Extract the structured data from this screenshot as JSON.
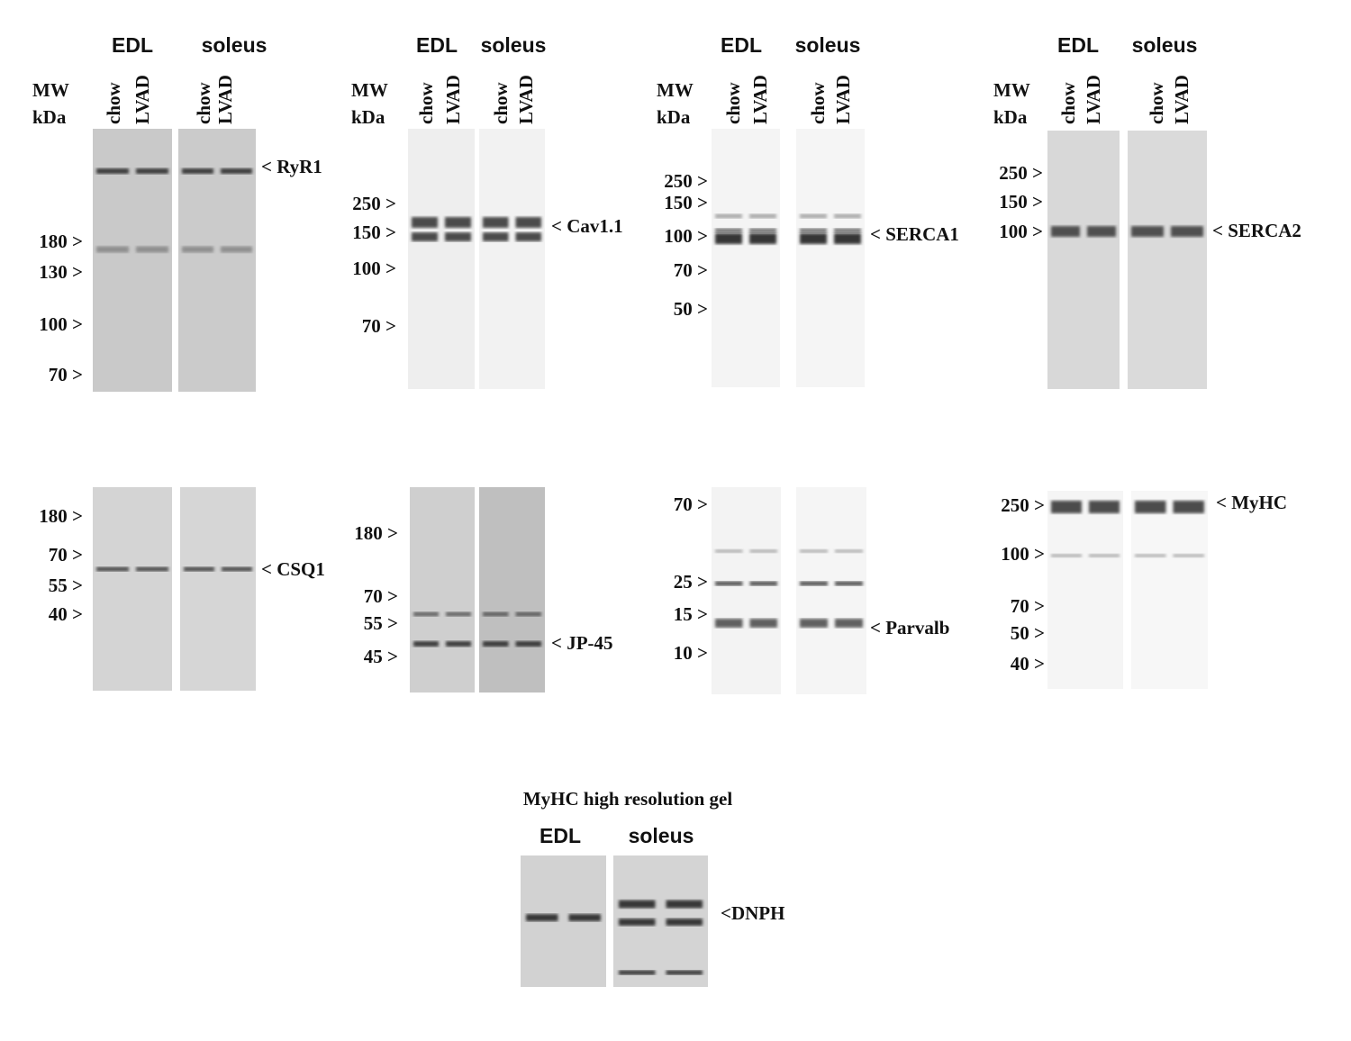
{
  "panels": [
    {
      "groups": [
        "EDL",
        "soleus"
      ],
      "lanes": [
        "chow",
        "LVAD",
        "chow",
        "LVAD"
      ],
      "mw": [
        "MW",
        "kDa"
      ],
      "markers": [
        "180 >",
        "130 >",
        "100 >",
        "70 >"
      ],
      "protein": "< RyR1"
    },
    {
      "groups": [
        "EDL",
        "soleus"
      ],
      "lanes": [
        "chow",
        "LVAD",
        "chow",
        "LVAD"
      ],
      "mw": [
        "MW",
        "kDa"
      ],
      "markers": [
        "250 >",
        "150 >",
        "100 >",
        "70 >"
      ],
      "protein": "< Cav1.1"
    },
    {
      "groups": [
        "EDL",
        "soleus"
      ],
      "lanes": [
        "chow",
        "LVAD",
        "chow",
        "LVAD"
      ],
      "mw": [
        "MW",
        "kDa"
      ],
      "markers": [
        "250 >",
        "150 >",
        "100 >",
        "70 >",
        "50 >"
      ],
      "protein": "< SERCA1"
    },
    {
      "groups": [
        "EDL",
        "soleus"
      ],
      "lanes": [
        "chow",
        "LVAD",
        "chow",
        "LVAD"
      ],
      "mw": [
        "MW",
        "kDa"
      ],
      "markers": [
        "250 >",
        "150 >",
        "100 >"
      ],
      "protein": "< SERCA2"
    },
    {
      "markers": [
        "180 >",
        "70 >",
        "55 >",
        "40 >"
      ],
      "protein": "< CSQ1"
    },
    {
      "markers": [
        "180 >",
        "70 >",
        "55 >",
        "45 >"
      ],
      "protein": "< JP-45"
    },
    {
      "markers": [
        "70 >",
        "25 >",
        "15 >",
        "10 >"
      ],
      "protein": "< Parvalb"
    },
    {
      "markers": [
        "250 >",
        "100 >",
        "70 >",
        "50 >",
        "40 >"
      ],
      "protein": "< MyHC"
    }
  ],
  "dnph": {
    "title": "MyHC high resolution gel",
    "groups": [
      "EDL",
      "soleus"
    ],
    "protein": "<DNPH"
  }
}
